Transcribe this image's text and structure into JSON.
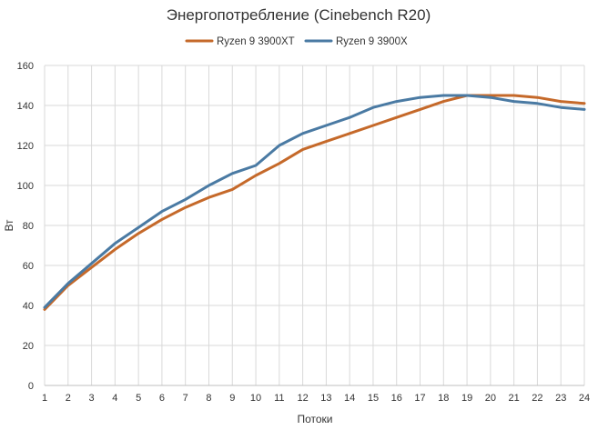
{
  "chart_data": {
    "type": "line",
    "title": "Энергопотребление (Cinebench R20)",
    "xlabel": "Потоки",
    "ylabel": "Вт",
    "ylim": [
      0,
      160
    ],
    "yticks": [
      0,
      20,
      40,
      60,
      80,
      100,
      120,
      140,
      160
    ],
    "grid": true,
    "legend_position": "top",
    "x": [
      1,
      2,
      3,
      4,
      5,
      6,
      7,
      8,
      9,
      10,
      11,
      12,
      13,
      14,
      15,
      16,
      17,
      18,
      19,
      20,
      21,
      22,
      23,
      24
    ],
    "series": [
      {
        "name": "Ryzen 9 3900XT",
        "color": "#c5692a",
        "values": [
          38,
          50,
          59,
          68,
          76,
          83,
          89,
          94,
          98,
          105,
          111,
          118,
          122,
          126,
          130,
          134,
          138,
          142,
          145,
          145,
          145,
          144,
          142,
          141
        ]
      },
      {
        "name": "Ryzen 9 3900X",
        "color": "#4a7aa3",
        "values": [
          39,
          51,
          61,
          71,
          79,
          87,
          93,
          100,
          106,
          110,
          120,
          126,
          130,
          134,
          139,
          142,
          144,
          145,
          145,
          144,
          142,
          141,
          139,
          138
        ]
      }
    ]
  }
}
